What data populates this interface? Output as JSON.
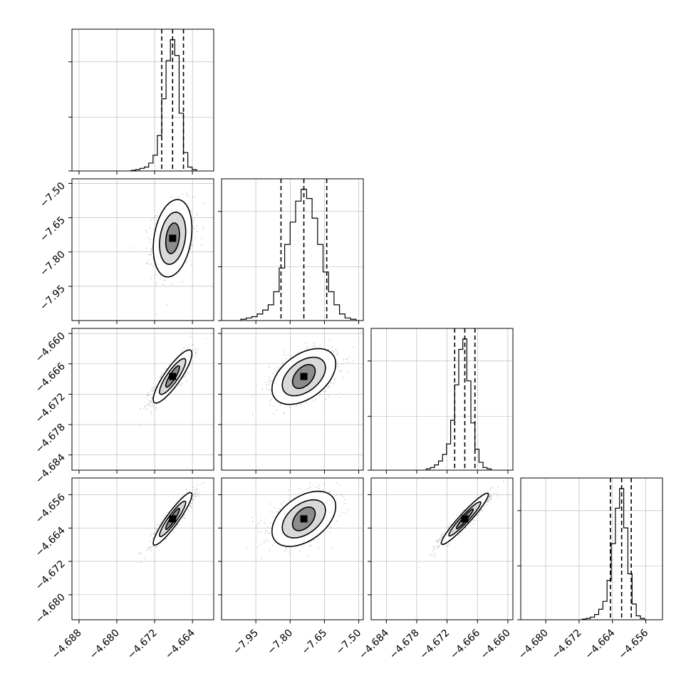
{
  "chart_data": {
    "type": "corner",
    "parameters": [
      {
        "range": [
          -4.6895,
          -4.6595
        ],
        "ticks": [
          -4.688,
          -4.68,
          -4.672,
          -4.664
        ],
        "tick_labels": [
          "−4.688",
          "−4.680",
          "−4.672",
          "−4.664"
        ]
      },
      {
        "range": [
          -8.1,
          -7.48
        ],
        "ticks": [
          -7.95,
          -7.8,
          -7.65,
          -7.5
        ],
        "tick_labels": [
          "−7.95",
          "−7.80",
          "−7.65",
          "−7.50"
        ]
      },
      {
        "range": [
          -4.687,
          -4.659
        ],
        "ticks": [
          -4.684,
          -4.678,
          -4.672,
          -4.666,
          -4.66
        ],
        "tick_labels": [
          "−4.684",
          "−4.678",
          "−4.672",
          "−4.666",
          "−4.660"
        ]
      },
      {
        "range": [
          -4.686,
          -4.652
        ],
        "ticks": [
          -4.68,
          -4.672,
          -4.664,
          -4.656
        ],
        "tick_labels": [
          "−4.680",
          "−4.672",
          "−4.664",
          "−4.656"
        ]
      }
    ],
    "marginals": [
      {
        "counts": [
          0.5,
          1,
          2,
          3,
          6,
          12,
          27,
          55,
          84,
          100,
          88,
          44,
          14,
          3,
          1
        ],
        "quantiles": [
          -4.6705,
          -4.6682,
          -4.6659
        ]
      },
      {
        "counts": [
          1,
          2,
          3,
          5,
          8,
          12,
          22,
          40,
          58,
          75,
          91,
          100,
          93,
          78,
          58,
          37,
          22,
          12,
          5,
          2,
          1
        ],
        "quantiles": [
          -7.84,
          -7.74,
          -7.64
        ]
      },
      {
        "counts": [
          1,
          2,
          4,
          7,
          12,
          20,
          38,
          65,
          92,
          100,
          68,
          36,
          16,
          6,
          2,
          1
        ],
        "quantiles": [
          -4.6705,
          -4.6685,
          -4.6665
        ]
      },
      {
        "counts": [
          0.5,
          1,
          2,
          4,
          8,
          14,
          30,
          58,
          85,
          100,
          70,
          35,
          12,
          3,
          1
        ],
        "quantiles": [
          -4.6645,
          -4.6618,
          -4.6595
        ]
      }
    ],
    "pairs": [
      {
        "row": 1,
        "col": 0,
        "mean": [
          -4.6682,
          -7.74
        ],
        "std": [
          0.0022,
          0.075
        ],
        "rho": 0.25,
        "levels": [
          [
            0.55,
            0.85
          ],
          [
            1.05,
            1.45
          ],
          [
            1.55,
            2.15
          ]
        ]
      },
      {
        "row": 2,
        "col": 0,
        "mean": [
          -4.6682,
          -4.6685
        ],
        "std": [
          0.0022,
          0.0025
        ],
        "rho": 0.86,
        "levels": [
          [
            0.55,
            0.8
          ],
          [
            1.05,
            1.35
          ],
          [
            1.55,
            2.0
          ]
        ]
      },
      {
        "row": 2,
        "col": 1,
        "mean": [
          -7.74,
          -4.6685
        ],
        "std": [
          0.075,
          0.0025
        ],
        "rho": 0.45,
        "levels": [
          [
            0.55,
            0.9
          ],
          [
            1.05,
            1.45
          ],
          [
            1.55,
            2.1
          ]
        ]
      },
      {
        "row": 3,
        "col": 0,
        "mean": [
          -4.6682,
          -4.6618
        ],
        "std": [
          0.0022,
          0.003
        ],
        "rho": 0.92,
        "levels": [
          [
            0.55,
            0.8
          ],
          [
            1.05,
            1.35
          ],
          [
            1.55,
            2.0
          ]
        ]
      },
      {
        "row": 3,
        "col": 1,
        "mean": [
          -7.74,
          -4.6618
        ],
        "std": [
          0.075,
          0.003
        ],
        "rho": 0.45,
        "levels": [
          [
            0.55,
            0.9
          ],
          [
            1.05,
            1.45
          ],
          [
            1.55,
            2.1
          ]
        ]
      },
      {
        "row": 3,
        "col": 2,
        "mean": [
          -4.6685,
          -4.6618
        ],
        "std": [
          0.0025,
          0.003
        ],
        "rho": 0.95,
        "levels": [
          [
            0.55,
            0.75
          ],
          [
            1.05,
            1.3
          ],
          [
            1.55,
            1.95
          ]
        ]
      }
    ],
    "grid": true,
    "legend": "none"
  }
}
